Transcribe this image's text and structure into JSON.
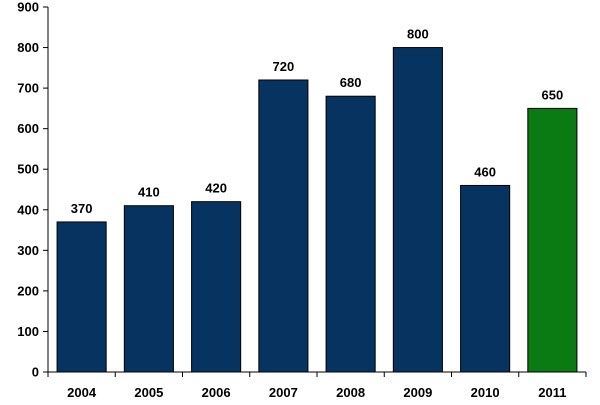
{
  "chart_data": {
    "type": "bar",
    "title": "",
    "xlabel": "",
    "ylabel": "",
    "categories": [
      "2004",
      "2005",
      "2006",
      "2007",
      "2008",
      "2009",
      "2010",
      "2011"
    ],
    "values": [
      370,
      410,
      420,
      720,
      680,
      800,
      460,
      650
    ],
    "data_labels": [
      "370",
      "410",
      "420",
      "720",
      "680",
      "800",
      "460",
      "650"
    ],
    "bar_colors": [
      "#06335F",
      "#06335F",
      "#06335F",
      "#06335F",
      "#06335F",
      "#06335F",
      "#06335F",
      "#0A7A12"
    ],
    "ylim": [
      0,
      900
    ],
    "yticks": [
      0,
      100,
      200,
      300,
      400,
      500,
      600,
      700,
      800,
      900
    ],
    "ytick_labels": [
      "0",
      "100",
      "200",
      "300",
      "400",
      "500",
      "600",
      "700",
      "800",
      "900"
    ],
    "grid": false,
    "legend": "none"
  }
}
